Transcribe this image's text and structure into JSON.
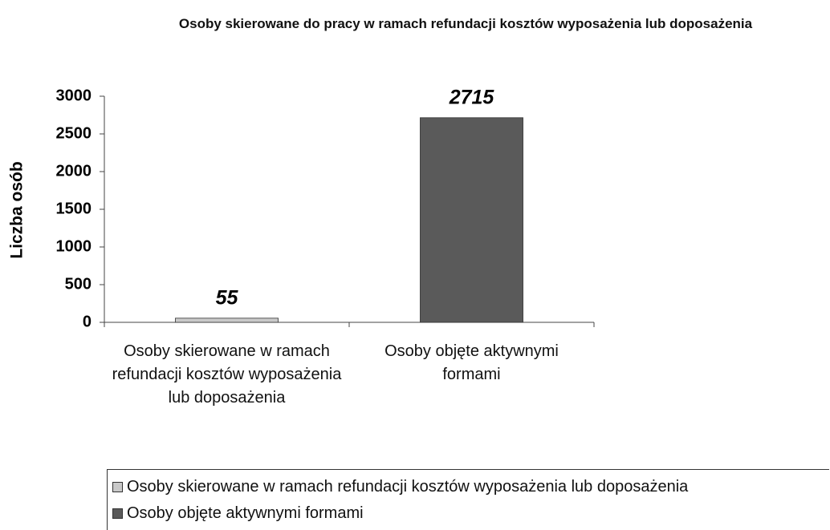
{
  "chart_data": {
    "type": "bar",
    "title": "Osoby skierowane do pracy w ramach refundacji kosztów wyposażenia lub doposażenia",
    "y_label": "Liczba osób",
    "categories": [
      "Osoby skierowane w ramach refundacji kosztów wyposażenia lub doposażenia",
      "Osoby objęte aktywnymi formami"
    ],
    "values": [
      55,
      2715
    ],
    "colors": [
      "#c9c9c9",
      "#5a5a5a"
    ],
    "ylim": [
      0,
      3000
    ],
    "yticks": [
      0,
      500,
      1000,
      1500,
      2000,
      2500,
      3000
    ],
    "grid": false,
    "legend": "bottom"
  }
}
